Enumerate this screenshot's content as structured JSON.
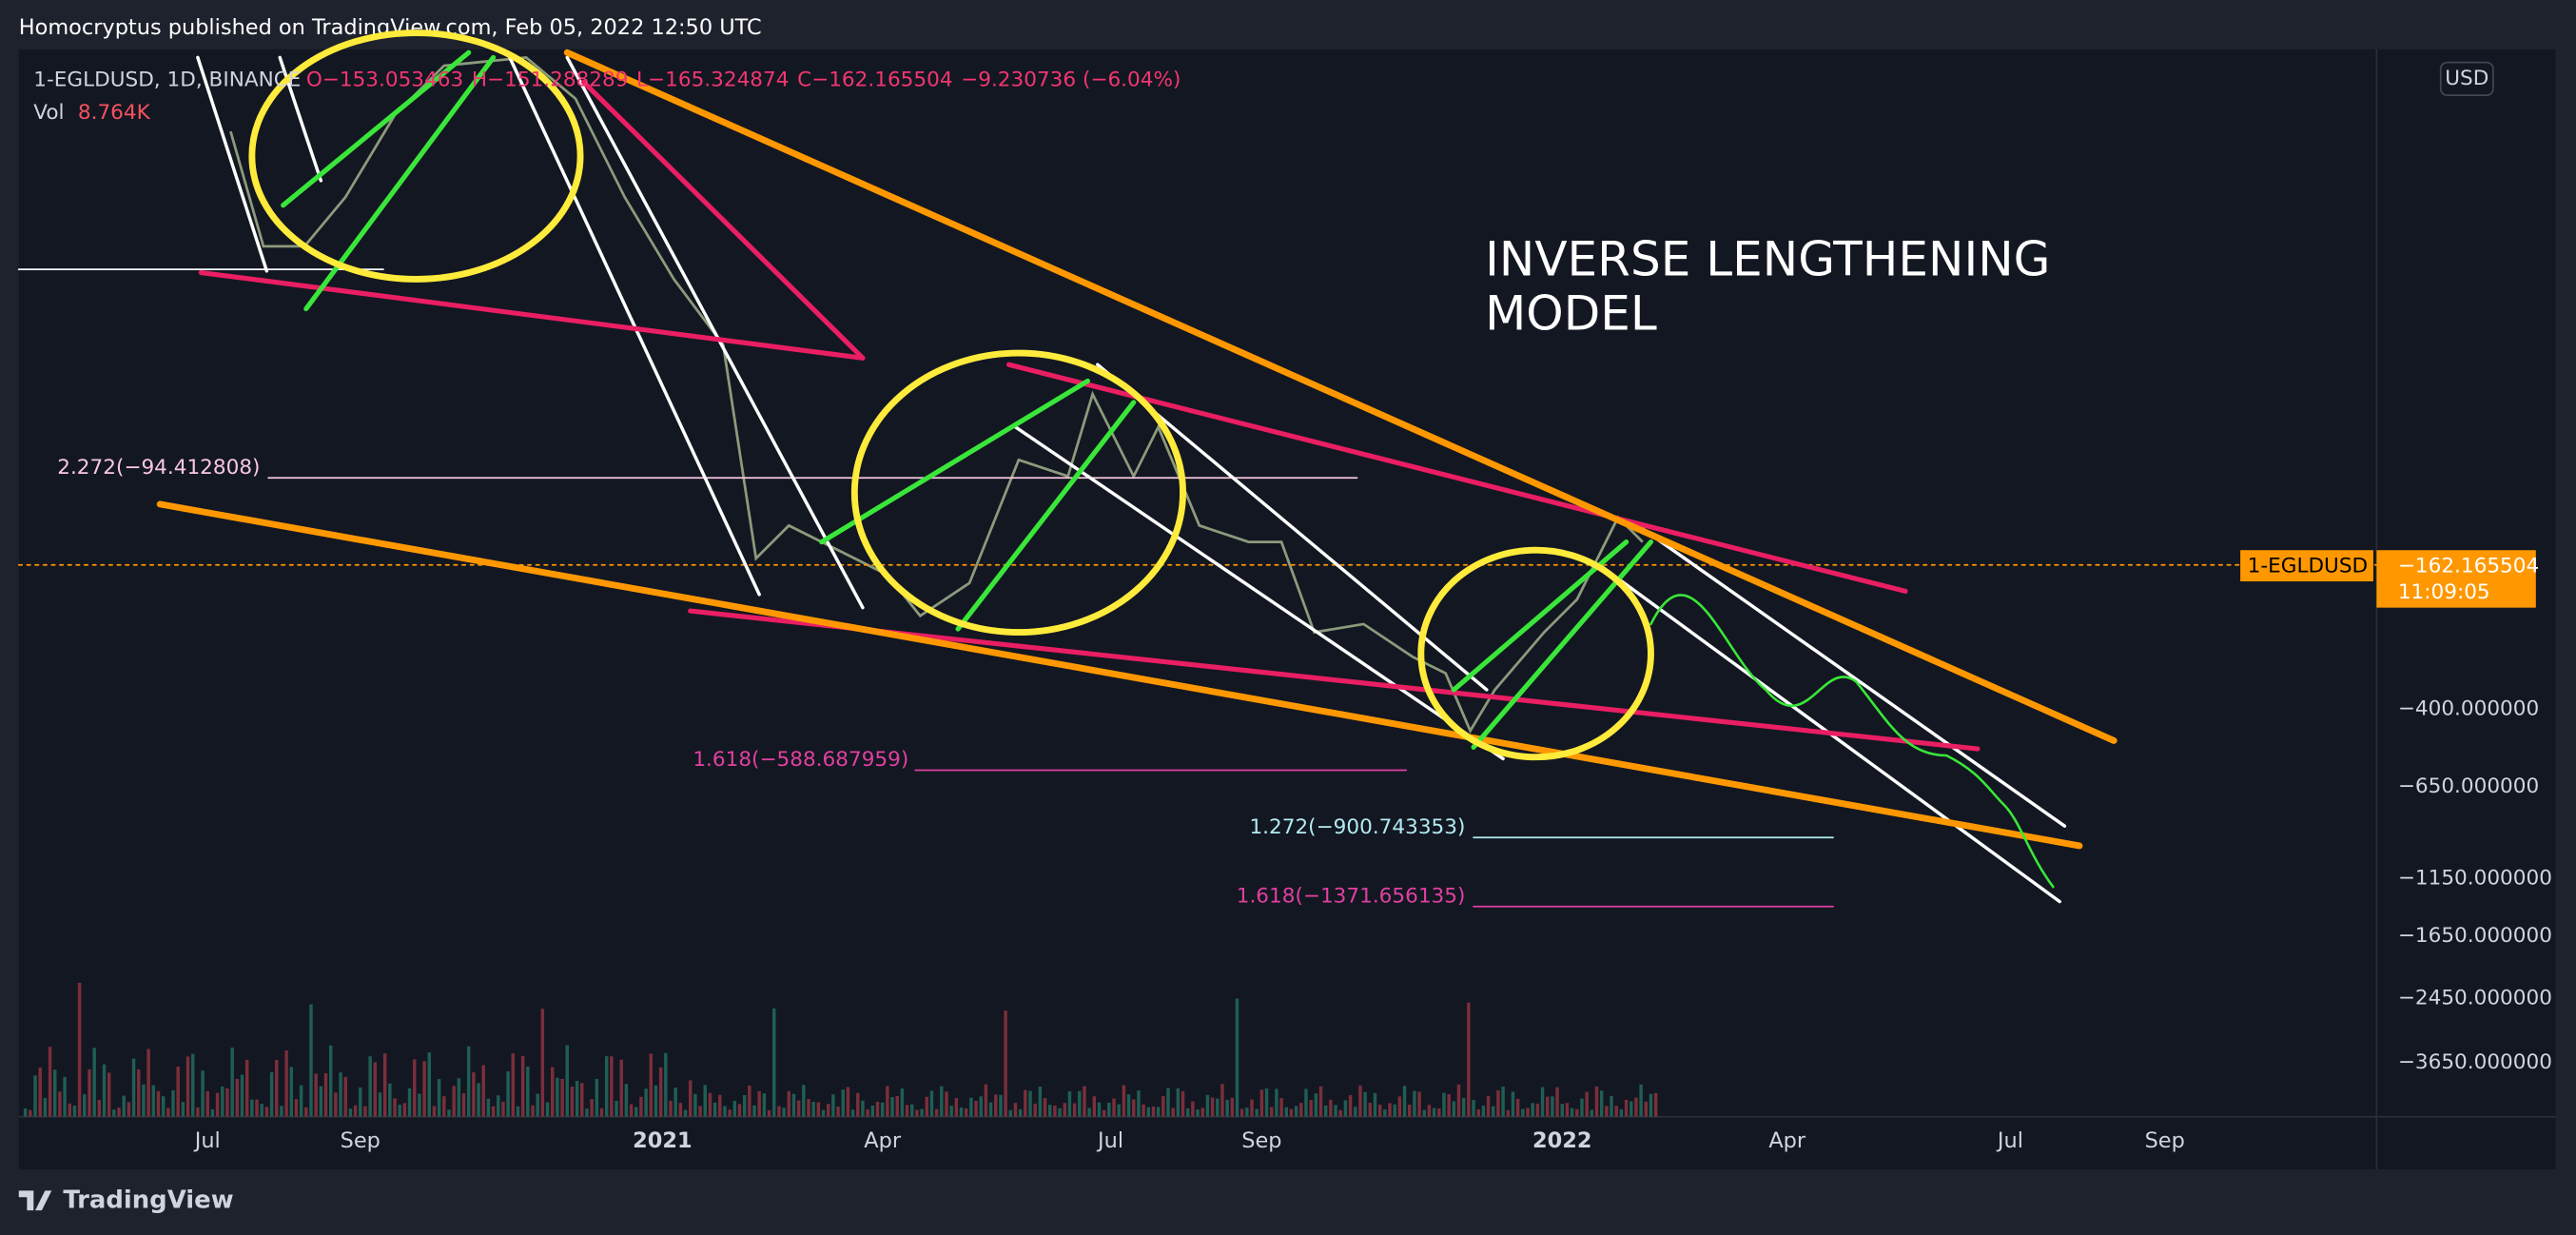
{
  "header": {
    "title": "Homocryptus published on TradingView.com, Feb 05, 2022 12:50 UTC"
  },
  "legend": {
    "symbol": "1-EGLDUSD, 1D, BINANCE",
    "ohlc": [
      "O−153.053463",
      "H−151.288289",
      "L−165.324874",
      "C−162.165504",
      "−9.230736 (−6.04%)"
    ],
    "volume_label": "Vol",
    "volume_value": "8.764K"
  },
  "annotation": [
    "INVERSE LENGTHENING",
    "MODEL"
  ],
  "fib_labels": [
    "2.272(−94.412808)",
    "1.618(−588.687959)",
    "1.272(−900.743353)",
    "1.618(−1371.656135)"
  ],
  "price_axis": {
    "currency": "USD",
    "labels": [
      "−400.000000",
      "−650.000000",
      "−1150.000000",
      "−1650.000000",
      "−2450.000000",
      "−3650.000000"
    ],
    "current": {
      "symbol": "1-EGLDUSD",
      "price": "−162.165504",
      "countdown": "11:09:05"
    }
  },
  "time_axis": [
    "Jul",
    "Sep",
    "2021",
    "Apr",
    "Jul",
    "Sep",
    "2022",
    "Apr",
    "Jul",
    "Sep"
  ],
  "footer": {
    "brand": "TradingView"
  }
}
